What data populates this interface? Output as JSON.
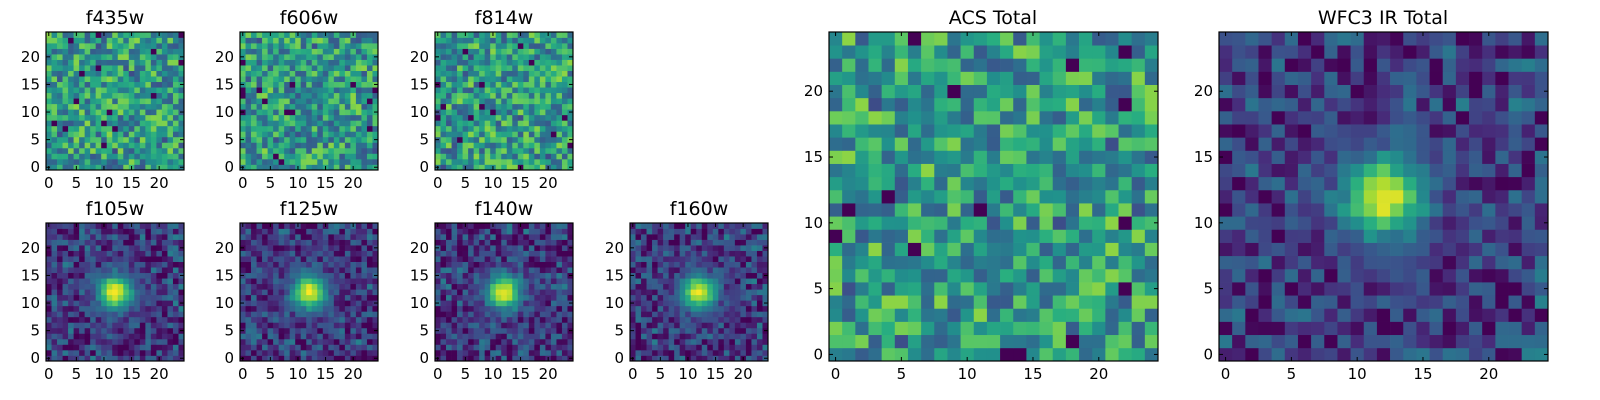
{
  "chart_data": [
    {
      "type": "heatmap",
      "title": "f435w",
      "pattern": "noise",
      "seed": 11,
      "grid": [
        25,
        25
      ],
      "xticks": [
        0,
        5,
        10,
        15,
        20
      ],
      "yticks": [
        0,
        5,
        10,
        15,
        20
      ],
      "xlim": [
        0,
        24
      ],
      "ylim": [
        0,
        24
      ]
    },
    {
      "type": "heatmap",
      "title": "f606w",
      "pattern": "noise",
      "seed": 23,
      "grid": [
        25,
        25
      ],
      "xticks": [
        0,
        5,
        10,
        15,
        20
      ],
      "yticks": [
        0,
        5,
        10,
        15,
        20
      ],
      "xlim": [
        0,
        24
      ],
      "ylim": [
        0,
        24
      ]
    },
    {
      "type": "heatmap",
      "title": "f814w",
      "pattern": "noise",
      "seed": 37,
      "grid": [
        25,
        25
      ],
      "xticks": [
        0,
        5,
        10,
        15,
        20
      ],
      "yticks": [
        0,
        5,
        10,
        15,
        20
      ],
      "xlim": [
        0,
        24
      ],
      "ylim": [
        0,
        24
      ]
    },
    {
      "type": "heatmap",
      "title": "f105w",
      "pattern": "source",
      "center": [
        12,
        12
      ],
      "seed": 41,
      "grid": [
        25,
        25
      ],
      "xticks": [
        0,
        5,
        10,
        15,
        20
      ],
      "yticks": [
        0,
        5,
        10,
        15,
        20
      ],
      "xlim": [
        0,
        24
      ],
      "ylim": [
        0,
        24
      ]
    },
    {
      "type": "heatmap",
      "title": "f125w",
      "pattern": "source",
      "center": [
        12,
        12
      ],
      "seed": 53,
      "grid": [
        25,
        25
      ],
      "xticks": [
        0,
        5,
        10,
        15,
        20
      ],
      "yticks": [
        0,
        5,
        10,
        15,
        20
      ],
      "xlim": [
        0,
        24
      ],
      "ylim": [
        0,
        24
      ]
    },
    {
      "type": "heatmap",
      "title": "f140w",
      "pattern": "source",
      "center": [
        12,
        12
      ],
      "seed": 67,
      "grid": [
        25,
        25
      ],
      "xticks": [
        0,
        5,
        10,
        15,
        20
      ],
      "yticks": [
        0,
        5,
        10,
        15,
        20
      ],
      "xlim": [
        0,
        24
      ],
      "ylim": [
        0,
        24
      ]
    },
    {
      "type": "heatmap",
      "title": "f160w",
      "pattern": "source",
      "center": [
        12,
        12
      ],
      "seed": 79,
      "grid": [
        25,
        25
      ],
      "xticks": [
        0,
        5,
        10,
        15,
        20
      ],
      "yticks": [
        0,
        5,
        10,
        15,
        20
      ],
      "xlim": [
        0,
        24
      ],
      "ylim": [
        0,
        24
      ]
    },
    {
      "type": "heatmap",
      "title": "ACS Total",
      "pattern": "noise",
      "seed": 97,
      "grid": [
        25,
        25
      ],
      "xticks": [
        0,
        5,
        10,
        15,
        20
      ],
      "yticks": [
        0,
        5,
        10,
        15,
        20
      ],
      "xlim": [
        0,
        24
      ],
      "ylim": [
        0,
        24
      ]
    },
    {
      "type": "heatmap",
      "title": "WFC3 IR Total",
      "pattern": "source",
      "center": [
        12,
        12
      ],
      "seed": 103,
      "grid": [
        25,
        25
      ],
      "xticks": [
        0,
        5,
        10,
        15,
        20
      ],
      "yticks": [
        0,
        5,
        10,
        15,
        20
      ],
      "xlim": [
        0,
        24
      ],
      "ylim": [
        0,
        24
      ]
    }
  ],
  "colormap": [
    "#440154",
    "#472d7b",
    "#3b528b",
    "#2c728e",
    "#21918c",
    "#28ae80",
    "#5ec962",
    "#addc30",
    "#fde725"
  ]
}
